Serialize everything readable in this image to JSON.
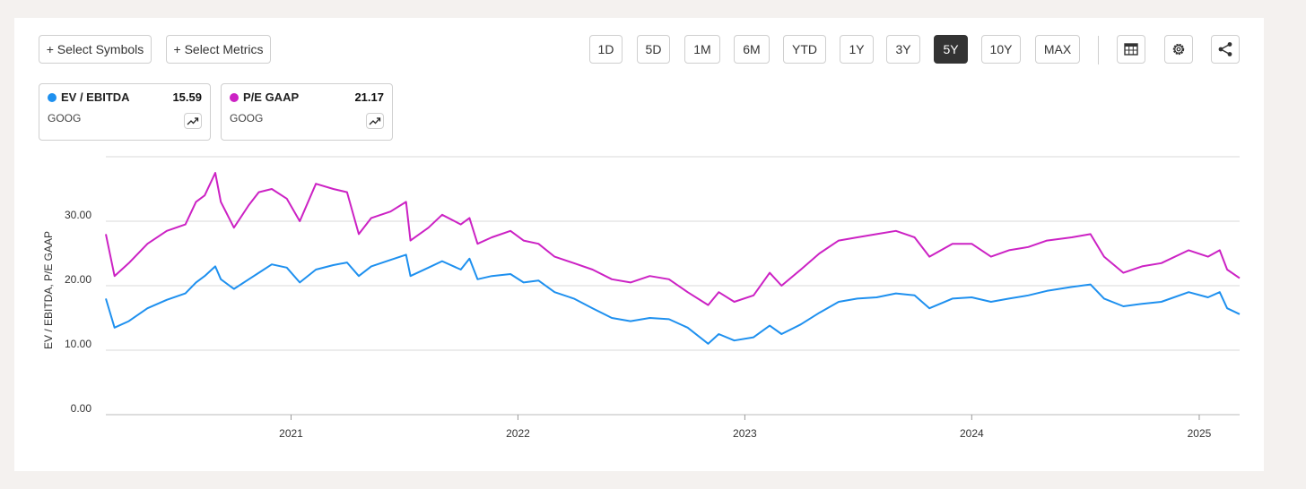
{
  "toolbar": {
    "select_symbols": "+ Select Symbols",
    "select_metrics": "+ Select Metrics",
    "ranges": [
      "1D",
      "5D",
      "1M",
      "6M",
      "YTD",
      "1Y",
      "3Y",
      "5Y",
      "10Y",
      "MAX"
    ],
    "active_range": "5Y",
    "icons": [
      "table-icon",
      "settings-gear-icon",
      "share-icon"
    ]
  },
  "metrics": [
    {
      "name": "EV / EBITDA",
      "value": "15.59",
      "symbol": "GOOG",
      "color": "#1e90ef"
    },
    {
      "name": "P/E GAAP",
      "value": "21.17",
      "symbol": "GOOG",
      "color": "#cc22c4"
    }
  ],
  "chart_data": {
    "type": "line",
    "ylabel": "EV / EBITDA, P/E GAAP",
    "y_ticks": [
      "0.00",
      "10.00",
      "20.00",
      "30.00"
    ],
    "ylim": [
      0,
      40
    ],
    "x_ticks": [
      "2021",
      "2022",
      "2023",
      "2024",
      "2025"
    ],
    "xlim": [
      "2020-03-09",
      "2025-03-07"
    ],
    "grid": true,
    "series": [
      {
        "name": "EV / EBITDA",
        "color": "#1e90ef",
        "points": [
          [
            "2020-03-09",
            18.0
          ],
          [
            "2020-03-23",
            13.5
          ],
          [
            "2020-04-15",
            14.5
          ],
          [
            "2020-05-15",
            16.5
          ],
          [
            "2020-06-15",
            17.8
          ],
          [
            "2020-07-15",
            18.8
          ],
          [
            "2020-08-01",
            20.5
          ],
          [
            "2020-08-15",
            21.5
          ],
          [
            "2020-09-01",
            23.0
          ],
          [
            "2020-09-10",
            21.0
          ],
          [
            "2020-10-01",
            19.5
          ],
          [
            "2020-10-25",
            21.0
          ],
          [
            "2020-11-10",
            22.0
          ],
          [
            "2020-12-01",
            23.3
          ],
          [
            "2020-12-25",
            22.8
          ],
          [
            "2021-01-15",
            20.5
          ],
          [
            "2021-02-10",
            22.5
          ],
          [
            "2021-03-10",
            23.2
          ],
          [
            "2021-04-01",
            23.6
          ],
          [
            "2021-04-20",
            21.5
          ],
          [
            "2021-05-10",
            23.0
          ],
          [
            "2021-06-10",
            24.0
          ],
          [
            "2021-07-05",
            24.8
          ],
          [
            "2021-07-12",
            21.5
          ],
          [
            "2021-08-10",
            22.8
          ],
          [
            "2021-09-01",
            23.8
          ],
          [
            "2021-10-01",
            22.5
          ],
          [
            "2021-10-15",
            24.2
          ],
          [
            "2021-10-28",
            21.0
          ],
          [
            "2021-11-20",
            21.5
          ],
          [
            "2021-12-20",
            21.8
          ],
          [
            "2022-01-10",
            20.5
          ],
          [
            "2022-02-03",
            20.8
          ],
          [
            "2022-03-01",
            19.0
          ],
          [
            "2022-04-01",
            18.0
          ],
          [
            "2022-05-01",
            16.5
          ],
          [
            "2022-06-01",
            15.0
          ],
          [
            "2022-07-01",
            14.5
          ],
          [
            "2022-08-01",
            15.0
          ],
          [
            "2022-09-01",
            14.8
          ],
          [
            "2022-10-01",
            13.5
          ],
          [
            "2022-11-03",
            11.0
          ],
          [
            "2022-11-20",
            12.5
          ],
          [
            "2022-12-15",
            11.5
          ],
          [
            "2023-01-15",
            12.0
          ],
          [
            "2023-02-10",
            13.8
          ],
          [
            "2023-03-01",
            12.5
          ],
          [
            "2023-04-01",
            14.0
          ],
          [
            "2023-05-01",
            15.8
          ],
          [
            "2023-06-01",
            17.5
          ],
          [
            "2023-07-01",
            18.0
          ],
          [
            "2023-08-01",
            18.2
          ],
          [
            "2023-09-01",
            18.8
          ],
          [
            "2023-10-01",
            18.5
          ],
          [
            "2023-10-25",
            16.5
          ],
          [
            "2023-12-01",
            18.0
          ],
          [
            "2024-01-01",
            18.2
          ],
          [
            "2024-02-01",
            17.5
          ],
          [
            "2024-03-01",
            18.0
          ],
          [
            "2024-04-01",
            18.5
          ],
          [
            "2024-05-01",
            19.2
          ],
          [
            "2024-06-10",
            19.8
          ],
          [
            "2024-07-10",
            20.2
          ],
          [
            "2024-08-01",
            18.0
          ],
          [
            "2024-09-01",
            16.8
          ],
          [
            "2024-10-01",
            17.2
          ],
          [
            "2024-11-01",
            17.5
          ],
          [
            "2024-12-15",
            19.0
          ],
          [
            "2025-01-15",
            18.2
          ],
          [
            "2025-02-03",
            19.0
          ],
          [
            "2025-02-15",
            16.5
          ],
          [
            "2025-03-07",
            15.59
          ]
        ]
      },
      {
        "name": "P/E GAAP",
        "color": "#cc22c4",
        "points": [
          [
            "2020-03-09",
            28.0
          ],
          [
            "2020-03-23",
            21.5
          ],
          [
            "2020-04-15",
            23.5
          ],
          [
            "2020-05-15",
            26.5
          ],
          [
            "2020-06-15",
            28.5
          ],
          [
            "2020-07-15",
            29.5
          ],
          [
            "2020-08-01",
            33.0
          ],
          [
            "2020-08-15",
            34.0
          ],
          [
            "2020-09-01",
            37.5
          ],
          [
            "2020-09-10",
            33.0
          ],
          [
            "2020-10-01",
            29.0
          ],
          [
            "2020-10-25",
            32.5
          ],
          [
            "2020-11-10",
            34.5
          ],
          [
            "2020-12-01",
            35.0
          ],
          [
            "2020-12-25",
            33.5
          ],
          [
            "2021-01-15",
            30.0
          ],
          [
            "2021-02-10",
            35.8
          ],
          [
            "2021-03-10",
            35.0
          ],
          [
            "2021-04-01",
            34.5
          ],
          [
            "2021-04-20",
            28.0
          ],
          [
            "2021-05-10",
            30.5
          ],
          [
            "2021-06-10",
            31.5
          ],
          [
            "2021-07-05",
            33.0
          ],
          [
            "2021-07-12",
            27.0
          ],
          [
            "2021-08-10",
            29.0
          ],
          [
            "2021-09-01",
            31.0
          ],
          [
            "2021-10-01",
            29.5
          ],
          [
            "2021-10-15",
            30.5
          ],
          [
            "2021-10-28",
            26.5
          ],
          [
            "2021-11-20",
            27.5
          ],
          [
            "2021-12-20",
            28.5
          ],
          [
            "2022-01-10",
            27.0
          ],
          [
            "2022-02-03",
            26.5
          ],
          [
            "2022-03-01",
            24.5
          ],
          [
            "2022-04-01",
            23.5
          ],
          [
            "2022-05-01",
            22.5
          ],
          [
            "2022-06-01",
            21.0
          ],
          [
            "2022-07-01",
            20.5
          ],
          [
            "2022-08-01",
            21.5
          ],
          [
            "2022-09-01",
            21.0
          ],
          [
            "2022-10-01",
            19.0
          ],
          [
            "2022-11-03",
            17.0
          ],
          [
            "2022-11-20",
            19.0
          ],
          [
            "2022-12-15",
            17.5
          ],
          [
            "2023-01-15",
            18.5
          ],
          [
            "2023-02-10",
            22.0
          ],
          [
            "2023-03-01",
            20.0
          ],
          [
            "2023-04-01",
            22.5
          ],
          [
            "2023-05-01",
            25.0
          ],
          [
            "2023-06-01",
            27.0
          ],
          [
            "2023-07-01",
            27.5
          ],
          [
            "2023-08-01",
            28.0
          ],
          [
            "2023-09-01",
            28.5
          ],
          [
            "2023-10-01",
            27.5
          ],
          [
            "2023-10-25",
            24.5
          ],
          [
            "2023-12-01",
            26.5
          ],
          [
            "2024-01-01",
            26.5
          ],
          [
            "2024-02-01",
            24.5
          ],
          [
            "2024-03-01",
            25.5
          ],
          [
            "2024-04-01",
            26.0
          ],
          [
            "2024-05-01",
            27.0
          ],
          [
            "2024-06-10",
            27.5
          ],
          [
            "2024-07-10",
            28.0
          ],
          [
            "2024-08-01",
            24.5
          ],
          [
            "2024-09-01",
            22.0
          ],
          [
            "2024-10-01",
            23.0
          ],
          [
            "2024-11-01",
            23.5
          ],
          [
            "2024-12-15",
            25.5
          ],
          [
            "2025-01-15",
            24.5
          ],
          [
            "2025-02-03",
            25.5
          ],
          [
            "2025-02-15",
            22.5
          ],
          [
            "2025-03-07",
            21.17
          ]
        ]
      }
    ]
  }
}
